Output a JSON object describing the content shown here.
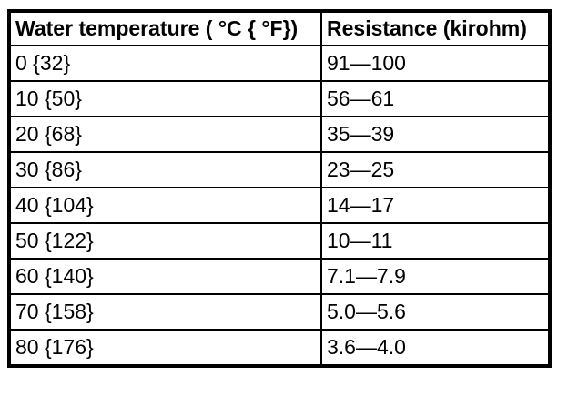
{
  "chart_data": {
    "type": "table",
    "columns": [
      "Water temperature ( °C { °F})",
      "Resistance (kirohm)"
    ],
    "rows": [
      [
        "0 {32}",
        "91—100"
      ],
      [
        "10 {50}",
        "56—61"
      ],
      [
        "20 {68}",
        "35—39"
      ],
      [
        "30 {86}",
        "23—25"
      ],
      [
        "40 {104}",
        "14—17"
      ],
      [
        "50 {122}",
        "10—11"
      ],
      [
        "60 {140}",
        "7.1—7.9"
      ],
      [
        "70 {158}",
        "5.0—5.6"
      ],
      [
        "80 {176}",
        "3.6—4.0"
      ]
    ],
    "layout": {
      "grid": "on",
      "header_style": "bold",
      "border_color": "#000000",
      "background_color": "#ffffff",
      "text_color": "#000000"
    }
  }
}
